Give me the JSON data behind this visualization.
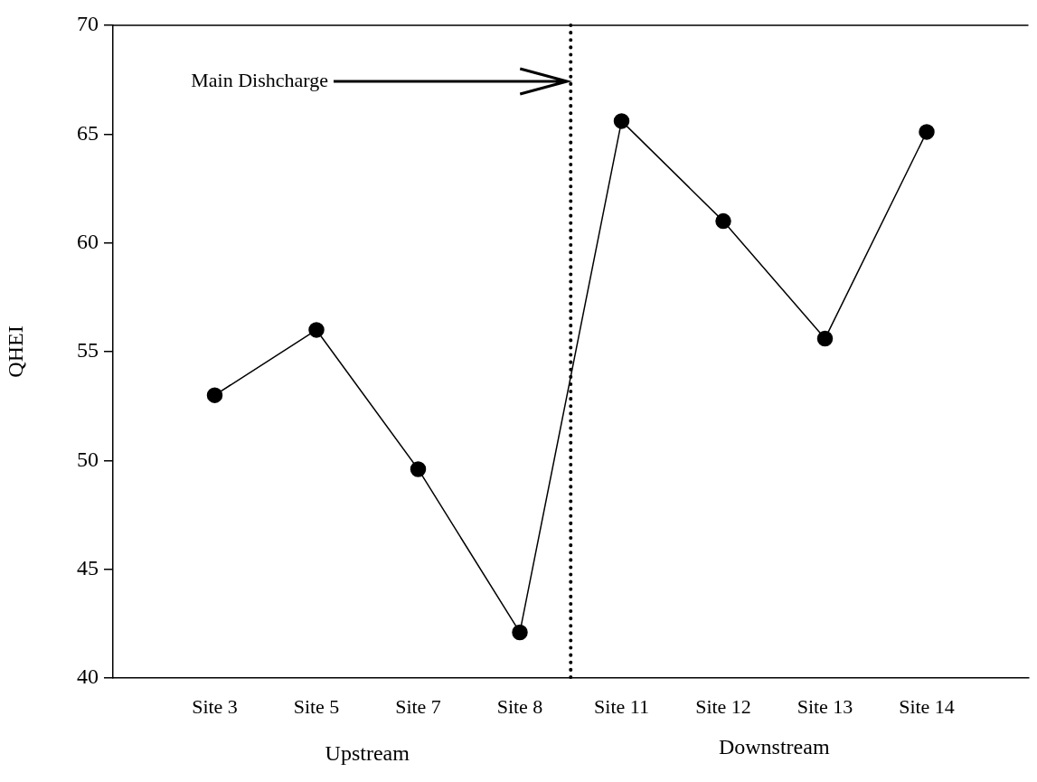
{
  "chart_data": {
    "type": "line",
    "ylabel": "QHEI",
    "categories": [
      "Site 3",
      "Site 5",
      "Site 7",
      "Site 8",
      "Site 11",
      "Site 12",
      "Site 13",
      "Site 14"
    ],
    "series": [
      {
        "color": "#000000",
        "values": [
          53,
          56,
          49.6,
          42.1,
          65.6,
          61,
          55.6,
          65.1
        ]
      }
    ],
    "ylim": [
      40,
      70
    ],
    "yticks": [
      40,
      45,
      50,
      55,
      60,
      65,
      70
    ],
    "annotations": [
      "Main Dishcharge",
      "Upstream",
      "Downstream"
    ],
    "grid": false,
    "legend": false,
    "marker": "circle",
    "line_style": "solid"
  }
}
